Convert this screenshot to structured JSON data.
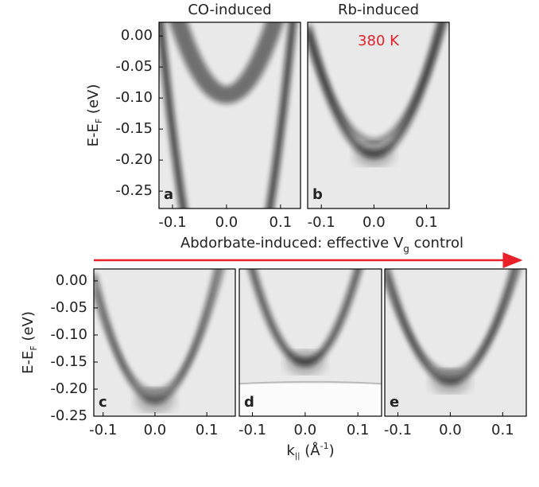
{
  "annotation": {
    "main": "Abdorbate-induced: effective V",
    "sub": "g",
    "rest": " control"
  },
  "chart_data": [
    {
      "type": "image",
      "title": "CO-induced",
      "label": "a",
      "y_label": {
        "main": "E-E",
        "sub": "F",
        "unit": " (eV)"
      },
      "xlim": [
        -0.125,
        0.137
      ],
      "ylim": [
        -0.278,
        0.022
      ],
      "xticks": [
        -0.1,
        {
          "value": 0,
          "label": "0.0"
        },
        0.1
      ],
      "yticks": [
        {
          "value": 0,
          "label": "0.00"
        },
        -0.05,
        {
          "value": -0.1,
          "label": "-0.10"
        },
        -0.15,
        {
          "value": -0.2,
          "label": "-0.20"
        },
        -0.25
      ]
    },
    {
      "type": "image",
      "title": "Rb-induced",
      "label": "b",
      "annotation": "380 K",
      "annotation_color": "#e8202a",
      "xlim": [
        -0.126,
        0.143
      ],
      "ylim": [
        -0.278,
        0.022
      ],
      "xticks": [
        -0.1,
        {
          "value": 0,
          "label": "0.0"
        },
        0.1
      ]
    },
    {
      "type": "image",
      "label": "c",
      "y_label": {
        "main": "E-E",
        "sub": "F",
        "unit": " (eV)"
      },
      "xlim": [
        -0.118,
        0.155
      ],
      "ylim": [
        -0.25,
        0.022
      ],
      "xticks": [
        -0.1,
        {
          "value": 0,
          "label": "0.0"
        },
        0.1
      ],
      "yticks": [
        {
          "value": 0,
          "label": "0.00"
        },
        -0.05,
        {
          "value": -0.1,
          "label": "-0.10"
        },
        -0.15,
        {
          "value": -0.2,
          "label": "-0.20"
        },
        -0.25
      ]
    },
    {
      "type": "image",
      "label": "d",
      "x_label": {
        "main": "k",
        "sub": "||",
        "unit": " (Å",
        "sup": "-1",
        "close": ")"
      },
      "xlim": [
        -0.125,
        0.145
      ],
      "ylim": [
        -0.25,
        0.022
      ],
      "xticks": [
        -0.1,
        {
          "value": 0,
          "label": "0.0"
        },
        0.1
      ]
    },
    {
      "type": "image",
      "label": "e",
      "xlim": [
        -0.125,
        0.145
      ],
      "ylim": [
        -0.25,
        0.022
      ],
      "xticks": [
        -0.1,
        {
          "value": 0,
          "label": "0.0"
        },
        0.1
      ]
    }
  ]
}
